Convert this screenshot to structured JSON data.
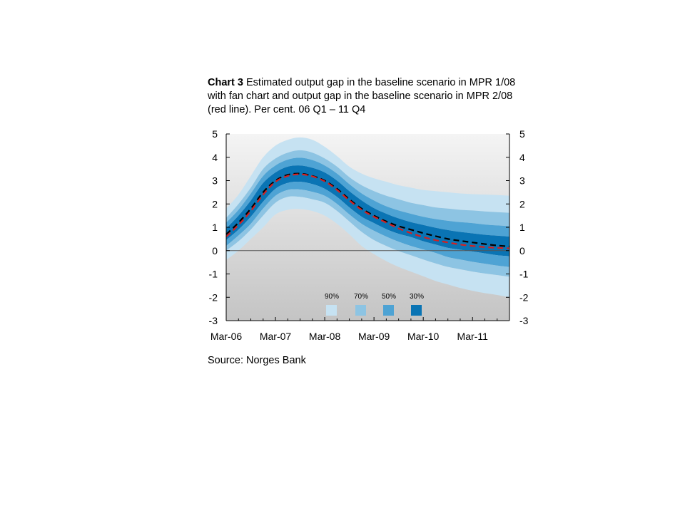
{
  "title": {
    "prefix": "Chart 3",
    "text": "Estimated output gap in the baseline scenario in MPR 1/08 with fan chart and output gap in the baseline scenario in MPR 2/08 (red line). Per cent. 06 Q1 – 11 Q4"
  },
  "source": "Source: Norges Bank",
  "chart_data": {
    "type": "area",
    "x": [
      "06Q1",
      "06Q2",
      "06Q3",
      "06Q4",
      "07Q1",
      "07Q2",
      "07Q3",
      "07Q4",
      "08Q1",
      "08Q2",
      "08Q3",
      "08Q4",
      "09Q1",
      "09Q2",
      "09Q3",
      "09Q4",
      "10Q1",
      "10Q2",
      "10Q3",
      "10Q4",
      "11Q1",
      "11Q2",
      "11Q3",
      "11Q4"
    ],
    "x_tick_labels": [
      "Mar-06",
      "Mar-07",
      "Mar-08",
      "Mar-09",
      "Mar-10",
      "Mar-11"
    ],
    "y_ticks": [
      5,
      4,
      3,
      2,
      1,
      0,
      -1,
      -2,
      -3
    ],
    "ylim": [
      -3,
      5
    ],
    "legend": [
      "90%",
      "70%",
      "50%",
      "30%"
    ],
    "colors": {
      "band90": "#c6e2f2",
      "band70": "#8dc4e3",
      "band50": "#4ea3d4",
      "band30": "#0a74b4",
      "background": "#c8c8c8",
      "baseline_mpr108": "#000000",
      "baseline_mpr208": "#d42020"
    },
    "series": [
      {
        "name": "MPR 1/08 baseline",
        "values": [
          0.7,
          1.2,
          1.8,
          2.5,
          3.0,
          3.25,
          3.3,
          3.2,
          3.0,
          2.65,
          2.2,
          1.8,
          1.5,
          1.25,
          1.05,
          0.9,
          0.75,
          0.62,
          0.5,
          0.42,
          0.35,
          0.28,
          0.22,
          0.18
        ]
      },
      {
        "name": "MPR 2/08 (red line)",
        "values": [
          0.6,
          1.1,
          1.7,
          2.4,
          2.95,
          3.2,
          3.27,
          3.18,
          2.97,
          2.6,
          2.15,
          1.75,
          1.45,
          1.2,
          0.95,
          0.75,
          0.58,
          0.45,
          0.35,
          0.26,
          0.2,
          0.15,
          0.12,
          0.1
        ]
      }
    ],
    "bands": {
      "center": [
        0.7,
        1.2,
        1.8,
        2.5,
        3.0,
        3.25,
        3.3,
        3.2,
        3.0,
        2.65,
        2.2,
        1.8,
        1.5,
        1.25,
        1.05,
        0.9,
        0.75,
        0.62,
        0.5,
        0.42,
        0.35,
        0.28,
        0.22,
        0.18
      ],
      "upper90": [
        1.8,
        2.4,
        3.2,
        4.0,
        4.5,
        4.75,
        4.85,
        4.75,
        4.45,
        4.05,
        3.6,
        3.3,
        3.1,
        2.95,
        2.8,
        2.7,
        2.6,
        2.55,
        2.5,
        2.45,
        2.42,
        2.4,
        2.38,
        2.35
      ],
      "upper70": [
        1.4,
        2.0,
        2.7,
        3.5,
        3.95,
        4.2,
        4.3,
        4.2,
        3.95,
        3.6,
        3.15,
        2.8,
        2.55,
        2.35,
        2.2,
        2.05,
        1.95,
        1.85,
        1.8,
        1.75,
        1.72,
        1.68,
        1.65,
        1.62
      ],
      "upper50": [
        1.2,
        1.75,
        2.45,
        3.2,
        3.65,
        3.9,
        3.98,
        3.88,
        3.65,
        3.3,
        2.85,
        2.45,
        2.15,
        1.9,
        1.72,
        1.58,
        1.45,
        1.35,
        1.28,
        1.22,
        1.18,
        1.12,
        1.08,
        1.05
      ],
      "upper30": [
        0.95,
        1.5,
        2.15,
        2.9,
        3.35,
        3.6,
        3.65,
        3.55,
        3.35,
        3.0,
        2.55,
        2.15,
        1.82,
        1.58,
        1.38,
        1.22,
        1.1,
        0.98,
        0.88,
        0.8,
        0.74,
        0.68,
        0.64,
        0.6
      ],
      "lower30": [
        0.45,
        0.9,
        1.45,
        2.1,
        2.65,
        2.9,
        2.95,
        2.85,
        2.65,
        2.3,
        1.85,
        1.45,
        1.18,
        0.92,
        0.72,
        0.58,
        0.4,
        0.26,
        0.12,
        0.04,
        -0.04,
        -0.12,
        -0.2,
        -0.24
      ],
      "lower50": [
        0.2,
        0.65,
        1.15,
        1.8,
        2.35,
        2.6,
        2.62,
        2.52,
        2.35,
        2.0,
        1.55,
        1.15,
        0.85,
        0.6,
        0.38,
        0.2,
        0.05,
        -0.1,
        -0.28,
        -0.38,
        -0.48,
        -0.56,
        -0.64,
        -0.7
      ],
      "lower70": [
        0.0,
        0.4,
        0.9,
        1.5,
        2.05,
        2.3,
        2.3,
        2.2,
        2.05,
        1.7,
        1.25,
        0.8,
        0.45,
        0.2,
        -0.02,
        -0.2,
        -0.38,
        -0.55,
        -0.7,
        -0.8,
        -0.9,
        -0.98,
        -1.05,
        -1.12
      ],
      "lower90": [
        -0.4,
        0.0,
        0.5,
        1.0,
        1.55,
        1.75,
        1.78,
        1.7,
        1.5,
        1.15,
        0.7,
        0.2,
        -0.15,
        -0.45,
        -0.7,
        -0.9,
        -1.1,
        -1.3,
        -1.45,
        -1.6,
        -1.72,
        -1.82,
        -1.9,
        -2.0
      ]
    }
  }
}
